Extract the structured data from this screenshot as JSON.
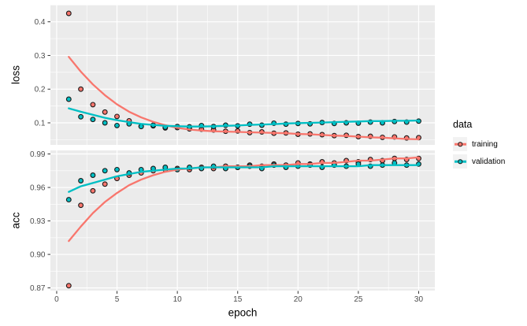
{
  "chart_data": {
    "type": "scatter",
    "title": "",
    "xlabel": "epoch",
    "grid": true,
    "epochs": [
      1,
      2,
      3,
      4,
      5,
      6,
      7,
      8,
      9,
      10,
      11,
      12,
      13,
      14,
      15,
      16,
      17,
      18,
      19,
      20,
      21,
      22,
      23,
      24,
      25,
      26,
      27,
      28,
      29,
      30
    ],
    "x": {
      "ticks": [
        0,
        5,
        10,
        15,
        20,
        25,
        30
      ],
      "tick_labels": [
        "0",
        "5",
        "10",
        "15",
        "20",
        "25",
        "30"
      ],
      "minor": [
        2.5,
        7.5,
        12.5,
        17.5,
        22.5,
        27.5
      ],
      "domain": [
        -0.52,
        31.34
      ]
    },
    "legend": {
      "title": "data",
      "position": "right",
      "items": [
        {
          "label": "training",
          "color": "#F8766D"
        },
        {
          "label": "validation",
          "color": "#00BFC4"
        }
      ]
    },
    "panels": [
      {
        "ylabel": "loss",
        "y_ticks": [
          0.1,
          0.2,
          0.3,
          0.4
        ],
        "y_tick_labels": [
          "0.1",
          "0.2",
          "0.3",
          "0.4"
        ],
        "y_minor": [
          0.05,
          0.15,
          0.25,
          0.35,
          0.45
        ],
        "y_domain": [
          0.0345,
          0.4507
        ],
        "series": [
          {
            "name": "training",
            "color": "#F8766D",
            "points": [
              0.425,
              0.2,
              0.154,
              0.132,
              0.119,
              0.106,
              0.09,
              0.091,
              0.085,
              0.086,
              0.082,
              0.081,
              0.079,
              0.075,
              0.076,
              0.071,
              0.073,
              0.069,
              0.07,
              0.066,
              0.067,
              0.065,
              0.062,
              0.063,
              0.059,
              0.06,
              0.057,
              0.058,
              0.055,
              0.056
            ],
            "smooth": [
              0.296,
              0.252,
              0.214,
              0.182,
              0.155,
              0.133,
              0.116,
              0.103,
              0.093,
              0.085,
              0.08,
              0.077,
              0.075,
              0.074,
              0.073,
              0.072,
              0.071,
              0.07,
              0.069,
              0.067,
              0.066,
              0.064,
              0.062,
              0.061,
              0.059,
              0.057,
              0.056,
              0.054,
              0.052,
              0.051
            ]
          },
          {
            "name": "validation",
            "color": "#00BFC4",
            "points": [
              0.17,
              0.118,
              0.11,
              0.1,
              0.092,
              0.097,
              0.089,
              0.093,
              0.087,
              0.089,
              0.088,
              0.092,
              0.089,
              0.093,
              0.091,
              0.096,
              0.093,
              0.099,
              0.096,
              0.098,
              0.097,
              0.101,
              0.098,
              0.1,
              0.099,
              0.102,
              0.1,
              0.104,
              0.102,
              0.105
            ],
            "smooth": [
              0.143,
              0.133,
              0.124,
              0.115,
              0.108,
              0.102,
              0.097,
              0.094,
              0.091,
              0.09,
              0.089,
              0.089,
              0.09,
              0.091,
              0.092,
              0.094,
              0.095,
              0.096,
              0.098,
              0.099,
              0.1,
              0.101,
              0.102,
              0.103,
              0.104,
              0.105,
              0.105,
              0.106,
              0.106,
              0.107
            ]
          }
        ]
      },
      {
        "ylabel": "acc",
        "y_ticks": [
          0.87,
          0.9,
          0.93,
          0.96,
          0.99
        ],
        "y_tick_labels": [
          "0.87",
          "0.90",
          "0.93",
          "0.96",
          "0.99"
        ],
        "y_minor": [
          0.885,
          0.915,
          0.945,
          0.975
        ],
        "y_domain": [
          0.8676,
          0.9932
        ],
        "series": [
          {
            "name": "training",
            "color": "#F8766D",
            "points": [
              0.872,
              0.944,
              0.957,
              0.963,
              0.968,
              0.971,
              0.973,
              0.975,
              0.976,
              0.977,
              0.976,
              0.978,
              0.977,
              0.979,
              0.978,
              0.98,
              0.979,
              0.981,
              0.98,
              0.982,
              0.981,
              0.983,
              0.982,
              0.984,
              0.983,
              0.985,
              0.984,
              0.986,
              0.985,
              0.986
            ],
            "smooth": [
              0.912,
              0.925,
              0.937,
              0.947,
              0.955,
              0.962,
              0.967,
              0.971,
              0.974,
              0.976,
              0.977,
              0.978,
              0.978,
              0.979,
              0.979,
              0.979,
              0.98,
              0.98,
              0.98,
              0.981,
              0.981,
              0.982,
              0.982,
              0.983,
              0.984,
              0.984,
              0.985,
              0.986,
              0.986,
              0.987
            ]
          },
          {
            "name": "validation",
            "color": "#00BFC4",
            "points": [
              0.949,
              0.966,
              0.971,
              0.975,
              0.976,
              0.973,
              0.976,
              0.977,
              0.978,
              0.976,
              0.978,
              0.977,
              0.979,
              0.977,
              0.978,
              0.979,
              0.977,
              0.98,
              0.978,
              0.979,
              0.98,
              0.978,
              0.98,
              0.979,
              0.981,
              0.979,
              0.98,
              0.982,
              0.98,
              0.981
            ],
            "smooth": [
              0.956,
              0.961,
              0.964,
              0.967,
              0.97,
              0.972,
              0.974,
              0.975,
              0.976,
              0.977,
              0.977,
              0.978,
              0.978,
              0.978,
              0.978,
              0.978,
              0.978,
              0.979,
              0.979,
              0.979,
              0.979,
              0.979,
              0.979,
              0.979,
              0.979,
              0.98,
              0.98,
              0.98,
              0.98,
              0.98
            ]
          }
        ]
      }
    ],
    "style": {
      "panel_bg": "#EBEBEB",
      "grid_color": "#FFFFFF",
      "tick_color": "#333333",
      "tick_label_color": "#4D4D4D",
      "point_stroke": "#1A1A1A",
      "legend_key_bg": "#F2F2F2"
    }
  }
}
